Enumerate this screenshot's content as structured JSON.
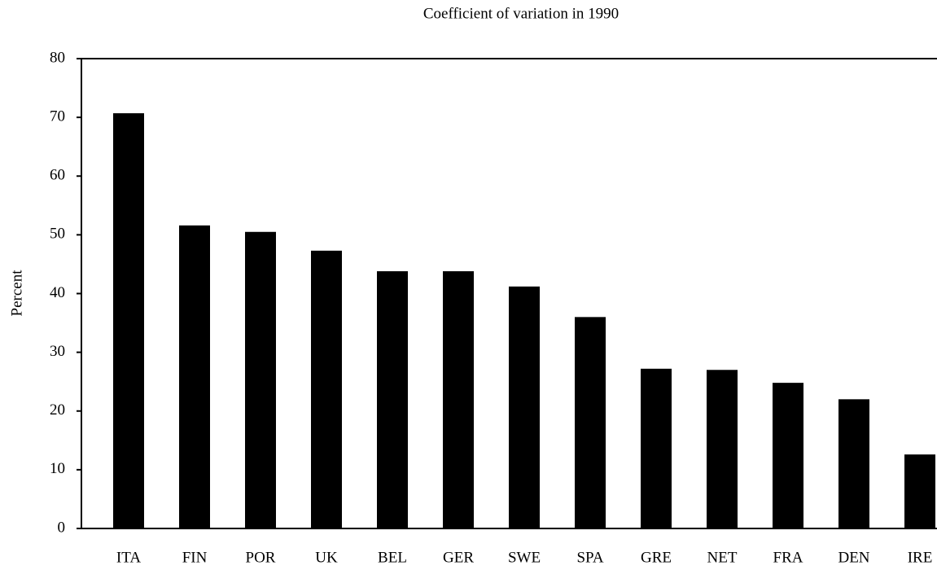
{
  "chart_data": {
    "type": "bar",
    "title": "Coefficient of variation in 1990",
    "y_label": "Percent",
    "categories": [
      "ITA",
      "FIN",
      "POR",
      "UK",
      "BEL",
      "GER",
      "SWE",
      "SPA",
      "GRE",
      "NET",
      "FRA",
      "DEN",
      "IRE"
    ],
    "values": [
      70.7,
      51.6,
      50.5,
      47.3,
      43.8,
      43.8,
      41.2,
      36.0,
      27.2,
      27.0,
      24.8,
      22.0,
      12.6
    ],
    "color": "#000000",
    "ylim": [
      0,
      80
    ],
    "yticks": [
      0,
      10,
      20,
      30,
      40,
      50,
      60,
      70,
      80
    ],
    "grid": false
  }
}
